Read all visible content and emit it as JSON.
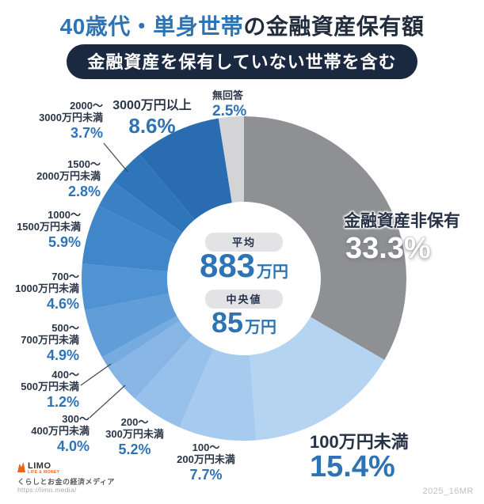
{
  "title": {
    "highlight": "40歳代・単身世帯",
    "rest": "の金融資産保有額"
  },
  "subtitle_badge": "金融資産を保有していない世帯を含む",
  "chart_data": {
    "type": "pie",
    "donut": true,
    "start_angle_deg": 0,
    "direction": "clockwise",
    "title": "40歳代・単身世帯の金融資産保有額",
    "subtitle": "金融資産を保有していない世帯を含む",
    "segments": [
      {
        "label": "金融資産非保有",
        "lines": [
          "金融資産非保有"
        ],
        "value": 33.3,
        "pct": "33.3%",
        "color": "#8f9093"
      },
      {
        "label": "100万円未満",
        "lines": [
          "100万円未満"
        ],
        "value": 15.4,
        "pct": "15.4%",
        "color": "#b5d4f2"
      },
      {
        "label": "100〜200万円未満",
        "lines": [
          "100〜",
          "200万円未満"
        ],
        "value": 7.7,
        "pct": "7.7%",
        "color": "#a7cbef"
      },
      {
        "label": "200〜300万円未満",
        "lines": [
          "200〜",
          "300万円未満"
        ],
        "value": 5.2,
        "pct": "5.2%",
        "color": "#97c1ea"
      },
      {
        "label": "300〜400万円未満",
        "lines": [
          "300〜",
          "400万円未満"
        ],
        "value": 4.0,
        "pct": "4.0%",
        "color": "#87b6e5"
      },
      {
        "label": "400〜500万円未満",
        "lines": [
          "400〜",
          "500万円未満"
        ],
        "value": 1.2,
        "pct": "1.2%",
        "color": "#76abdf"
      },
      {
        "label": "500〜700万円未満",
        "lines": [
          "500〜",
          "700万円未満"
        ],
        "value": 4.9,
        "pct": "4.9%",
        "color": "#619dd8"
      },
      {
        "label": "700〜1000万円未満",
        "lines": [
          "700〜",
          "1000万円未満"
        ],
        "value": 4.6,
        "pct": "4.6%",
        "color": "#5093d2"
      },
      {
        "label": "1000〜1500万円未満",
        "lines": [
          "1000〜",
          "1500万円未満"
        ],
        "value": 5.9,
        "pct": "5.9%",
        "color": "#3f87c9"
      },
      {
        "label": "1500〜2000万円未満",
        "lines": [
          "1500〜",
          "2000万円未満"
        ],
        "value": 2.8,
        "pct": "2.8%",
        "color": "#3a80c2"
      },
      {
        "label": "2000〜3000万円未満",
        "lines": [
          "2000〜",
          "3000万円未満"
        ],
        "value": 3.7,
        "pct": "3.7%",
        "color": "#2f75b9"
      },
      {
        "label": "3000万円以上",
        "lines": [
          "3000万円以上"
        ],
        "value": 8.6,
        "pct": "8.6%",
        "color": "#2a6cb0"
      },
      {
        "label": "無回答",
        "lines": [
          "無回答"
        ],
        "value": 2.5,
        "pct": "2.5%",
        "color": "#d4d4d6"
      }
    ],
    "center": {
      "avg_label": "平均",
      "avg_value": "883",
      "avg_unit": "万円",
      "med_label": "中央値",
      "med_value": "85",
      "med_unit": "万円"
    }
  },
  "colors": {
    "title_blue": "#2e74b5",
    "title_navy": "#212c3d",
    "badge_bg": "#1b2940",
    "pct_blue": "#2e74b5",
    "leader_line": "#3b4654"
  },
  "footer": {
    "logo_text": "LIMO",
    "logo_tagline": "LIFE & MONEY",
    "media_line": "くらしとお金の経済メディア",
    "url": "https://limo.media/",
    "code": "2025_16MR"
  }
}
